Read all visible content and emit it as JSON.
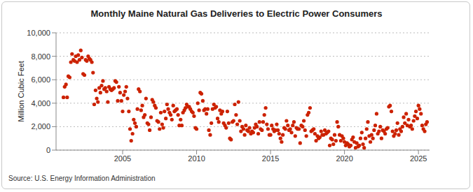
{
  "chart_data": {
    "type": "scatter",
    "title": "Monthly Maine Natural Gas Deliveries to Electric Power Consumers",
    "y_label": "Million Cubic Feet",
    "source": "Source: U.S. Energy Information Administration",
    "color": "#cc2200",
    "marker": "circle",
    "grid": true,
    "xlim": [
      2000.5,
      2025.75
    ],
    "xticks": [
      2005,
      2010,
      2015,
      2020,
      2025
    ],
    "ylim": [
      0,
      10000
    ],
    "yticks": [
      0,
      {
        "value": 2000,
        "label": "2,000"
      },
      {
        "value": 4000,
        "label": "4,000"
      },
      {
        "value": 6000,
        "label": "6,000"
      },
      {
        "value": 8000,
        "label": "8,000"
      },
      {
        "value": 10000,
        "label": "10,000"
      }
    ],
    "x": [
      2001.0,
      2001.08,
      2001.17,
      2001.25,
      2001.33,
      2001.42,
      2001.5,
      2001.58,
      2001.67,
      2001.75,
      2001.83,
      2001.92,
      2002.0,
      2002.08,
      2002.17,
      2002.25,
      2002.33,
      2002.42,
      2002.5,
      2002.58,
      2002.67,
      2002.75,
      2002.83,
      2002.92,
      2003.0,
      2003.08,
      2003.17,
      2003.25,
      2003.33,
      2003.42,
      2003.5,
      2003.58,
      2003.67,
      2003.75,
      2003.83,
      2003.92,
      2004.0,
      2004.08,
      2004.17,
      2004.25,
      2004.33,
      2004.42,
      2004.5,
      2004.58,
      2004.67,
      2004.75,
      2004.83,
      2004.92,
      2005.0,
      2005.08,
      2005.17,
      2005.25,
      2005.33,
      2005.42,
      2005.5,
      2005.58,
      2005.67,
      2005.75,
      2005.83,
      2005.92,
      2006.0,
      2006.08,
      2006.17,
      2006.25,
      2006.33,
      2006.42,
      2006.5,
      2006.58,
      2006.67,
      2006.75,
      2006.83,
      2006.92,
      2007.0,
      2007.08,
      2007.17,
      2007.25,
      2007.33,
      2007.42,
      2007.5,
      2007.58,
      2007.67,
      2007.75,
      2007.83,
      2007.92,
      2008.0,
      2008.08,
      2008.17,
      2008.25,
      2008.33,
      2008.42,
      2008.5,
      2008.58,
      2008.67,
      2008.75,
      2008.83,
      2008.92,
      2009.0,
      2009.08,
      2009.17,
      2009.25,
      2009.33,
      2009.42,
      2009.5,
      2009.58,
      2009.67,
      2009.75,
      2009.83,
      2009.92,
      2010.0,
      2010.08,
      2010.17,
      2010.25,
      2010.33,
      2010.42,
      2010.5,
      2010.58,
      2010.67,
      2010.75,
      2010.83,
      2010.92,
      2011.0,
      2011.08,
      2011.17,
      2011.25,
      2011.33,
      2011.42,
      2011.5,
      2011.58,
      2011.67,
      2011.75,
      2011.83,
      2011.92,
      2012.0,
      2012.08,
      2012.17,
      2012.25,
      2012.33,
      2012.42,
      2012.5,
      2012.58,
      2012.67,
      2012.75,
      2012.83,
      2012.92,
      2013.0,
      2013.08,
      2013.17,
      2013.25,
      2013.33,
      2013.42,
      2013.5,
      2013.58,
      2013.67,
      2013.75,
      2013.83,
      2013.92,
      2014.0,
      2014.08,
      2014.17,
      2014.25,
      2014.33,
      2014.42,
      2014.5,
      2014.58,
      2014.67,
      2014.75,
      2014.83,
      2014.92,
      2015.0,
      2015.08,
      2015.17,
      2015.25,
      2015.33,
      2015.42,
      2015.5,
      2015.58,
      2015.67,
      2015.75,
      2015.83,
      2015.92,
      2016.0,
      2016.08,
      2016.17,
      2016.25,
      2016.33,
      2016.42,
      2016.5,
      2016.58,
      2016.67,
      2016.75,
      2016.83,
      2016.92,
      2017.0,
      2017.08,
      2017.17,
      2017.25,
      2017.33,
      2017.42,
      2017.5,
      2017.58,
      2017.67,
      2017.75,
      2017.83,
      2017.92,
      2018.0,
      2018.08,
      2018.17,
      2018.25,
      2018.33,
      2018.42,
      2018.5,
      2018.58,
      2018.67,
      2018.75,
      2018.83,
      2018.92,
      2019.0,
      2019.08,
      2019.17,
      2019.25,
      2019.33,
      2019.42,
      2019.5,
      2019.58,
      2019.67,
      2019.75,
      2019.83,
      2019.92,
      2020.0,
      2020.08,
      2020.17,
      2020.25,
      2020.33,
      2020.42,
      2020.5,
      2020.58,
      2020.67,
      2020.75,
      2020.83,
      2020.92,
      2021.0,
      2021.08,
      2021.17,
      2021.25,
      2021.33,
      2021.42,
      2021.5,
      2021.58,
      2021.67,
      2021.75,
      2021.83,
      2021.92,
      2022.0,
      2022.08,
      2022.17,
      2022.25,
      2022.33,
      2022.42,
      2022.5,
      2022.58,
      2022.67,
      2022.75,
      2022.83,
      2022.92,
      2023.0,
      2023.08,
      2023.17,
      2023.25,
      2023.33,
      2023.42,
      2023.5,
      2023.58,
      2023.67,
      2023.75,
      2023.83,
      2023.92,
      2024.0,
      2024.08,
      2024.17,
      2024.25,
      2024.33,
      2024.42,
      2024.5,
      2024.58,
      2024.67,
      2024.75,
      2024.83,
      2024.92,
      2025.0,
      2025.08,
      2025.17,
      2025.25,
      2025.33,
      2025.42,
      2025.5,
      2025.58
    ],
    "values": [
      4500,
      5400,
      5600,
      4500,
      6300,
      6200,
      7500,
      8200,
      7700,
      7600,
      8000,
      7500,
      8100,
      7700,
      8500,
      7900,
      6500,
      6400,
      7700,
      7600,
      8000,
      7800,
      7700,
      7500,
      6600,
      3900,
      5100,
      4400,
      4100,
      5300,
      4900,
      5500,
      5900,
      5200,
      5300,
      5000,
      4100,
      5400,
      5200,
      5100,
      5200,
      5300,
      5900,
      5800,
      4200,
      5400,
      4900,
      4200,
      3300,
      4700,
      5000,
      5400,
      4400,
      3300,
      1800,
      800,
      1400,
      2600,
      2300,
      2000,
      3500,
      5200,
      5000,
      3400,
      3800,
      2800,
      3000,
      4400,
      2300,
      2200,
      1700,
      2800,
      4300,
      4100,
      3800,
      3600,
      2500,
      2400,
      1800,
      3200,
      2200,
      1900,
      3300,
      2700,
      3900,
      3500,
      3200,
      3000,
      2600,
      3800,
      3300,
      3400,
      3500,
      3000,
      2100,
      2600,
      2100,
      3200,
      3400,
      3600,
      3900,
      3700,
      3700,
      3500,
      3300,
      3200,
      2900,
      1900,
      1800,
      4000,
      3400,
      4900,
      4800,
      4200,
      3400,
      3500,
      3100,
      3500,
      1700,
      1300,
      2300,
      3500,
      3900,
      3600,
      3700,
      2700,
      2400,
      3400,
      3100,
      3300,
      2300,
      2100,
      1900,
      3300,
      2300,
      1000,
      900,
      2400,
      2500,
      3900,
      3000,
      2200,
      4100,
      2500,
      1600,
      2000,
      1800,
      1300,
      2100,
      1700,
      1600,
      1900,
      1400,
      1600,
      1500,
      1900,
      2200,
      2000,
      1400,
      2400,
      1800,
      1700,
      2400,
      3000,
      3600,
      2200,
      1800,
      1300,
      1300,
      2100,
      1800,
      1600,
      1700,
      2200,
      1700,
      1400,
      1000,
      700,
      1300,
      1900,
      1800,
      2500,
      2100,
      1700,
      1800,
      1500,
      2100,
      2400,
      1200,
      1900,
      1800,
      1800,
      600,
      2100,
      2000,
      2500,
      1700,
      1200,
      3000,
      3200,
      3600,
      1600,
      1700,
      1800,
      1400,
      800,
      1200,
      1000,
      1100,
      1600,
      1300,
      1300,
      1700,
      1400,
      1500,
      1600,
      400,
      1000,
      900,
      500,
      1300,
      800,
      2400,
      2000,
      1300,
      800,
      1200,
      1000,
      700,
      400,
      600,
      500,
      300,
      400,
      900,
      1100,
      700,
      200,
      600,
      300,
      400,
      1000,
      1500,
      500,
      200,
      1000,
      1800,
      2400,
      1200,
      700,
      1300,
      1000,
      1700,
      2100,
      3100,
      1400,
      1600,
      2000,
      1000,
      1700,
      1600,
      1400,
      1800,
      1900,
      3700,
      3800,
      3300,
      1600,
      1200,
      1400,
      1700,
      2300,
      1300,
      1800,
      1600,
      2000,
      2800,
      2300,
      3100,
      2100,
      2600,
      2000,
      2100,
      1800,
      2500,
      2900,
      3300,
      2700,
      3800,
      3500,
      3100,
      2100,
      1800,
      1600,
      2200,
      2400
    ]
  }
}
